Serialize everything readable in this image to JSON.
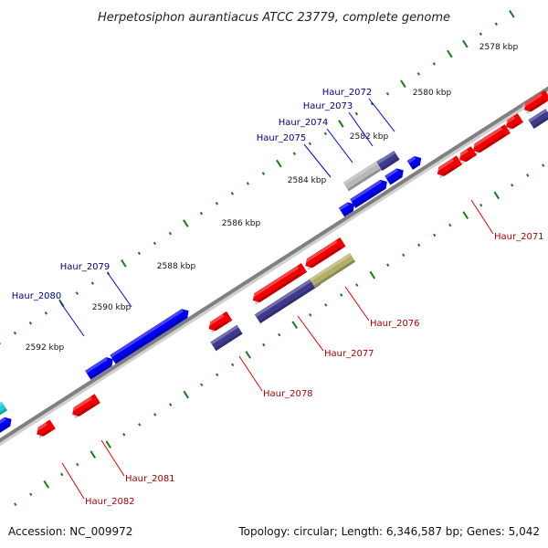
{
  "title": "Herpetosiphon aurantiacus ATCC 23779, complete genome",
  "footer": {
    "accession": "Accession: NC_009972",
    "summary": "Topology: circular; Length: 6,346,587 bp; Genes: 5,042"
  },
  "colors": {
    "forward": "#0000ee",
    "reverse": "#ee0000",
    "forward_label": "#00008b",
    "reverse_label": "#b00000",
    "grey_gene": "#b8b8b8",
    "navy_gene": "#3d3a8c",
    "olive_gene": "#b3ad6a",
    "cyan_gene": "#22cccc",
    "backbone": "#808080",
    "tick": "#1a7a1a"
  },
  "ticks": [
    {
      "label": "2578 kbp"
    },
    {
      "label": "2580 kbp"
    },
    {
      "label": "2582 kbp"
    },
    {
      "label": "2584 kbp"
    },
    {
      "label": "2586 kbp"
    },
    {
      "label": "2588 kbp"
    },
    {
      "label": "2590 kbp"
    },
    {
      "label": "2592 kbp"
    }
  ],
  "labels": [
    {
      "name": "Haur_2072",
      "strand": "forward"
    },
    {
      "name": "Haur_2073",
      "strand": "forward"
    },
    {
      "name": "Haur_2074",
      "strand": "forward"
    },
    {
      "name": "Haur_2075",
      "strand": "forward"
    },
    {
      "name": "Haur_2079",
      "strand": "forward"
    },
    {
      "name": "Haur_2080",
      "strand": "forward"
    },
    {
      "name": "Haur_2071",
      "strand": "reverse"
    },
    {
      "name": "Haur_2076",
      "strand": "reverse"
    },
    {
      "name": "Haur_2077",
      "strand": "reverse"
    },
    {
      "name": "Haur_2078",
      "strand": "reverse"
    },
    {
      "name": "Haur_2081",
      "strand": "reverse"
    },
    {
      "name": "Haur_2082",
      "strand": "reverse"
    }
  ]
}
